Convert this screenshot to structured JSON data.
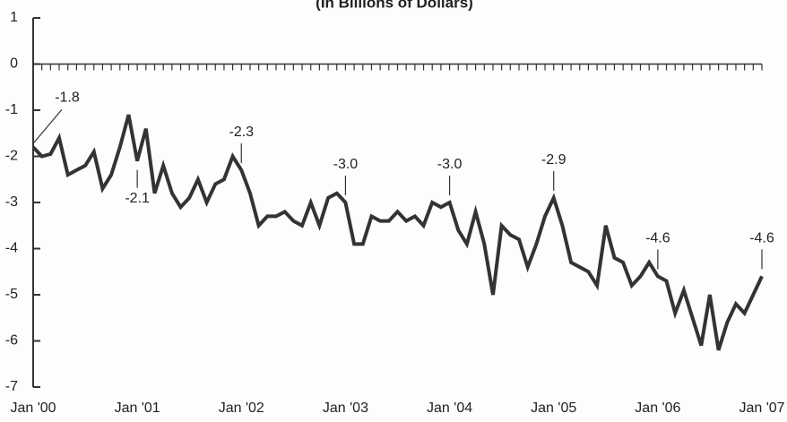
{
  "chart_data": {
    "type": "line",
    "title": "(In Billions of Dollars)",
    "categories": [
      "Jan '00",
      null,
      null,
      null,
      null,
      null,
      null,
      null,
      null,
      null,
      null,
      null,
      "Jan '01",
      null,
      null,
      null,
      null,
      null,
      null,
      null,
      null,
      null,
      null,
      null,
      "Jan '02",
      null,
      null,
      null,
      null,
      null,
      null,
      null,
      null,
      null,
      null,
      null,
      "Jan '03",
      null,
      null,
      null,
      null,
      null,
      null,
      null,
      null,
      null,
      null,
      null,
      "Jan '04",
      null,
      null,
      null,
      null,
      null,
      null,
      null,
      null,
      null,
      null,
      null,
      "Jan '05",
      null,
      null,
      null,
      null,
      null,
      null,
      null,
      null,
      null,
      null,
      null,
      "Jan '06",
      null,
      null,
      null,
      null,
      null,
      null,
      null,
      null,
      null,
      null,
      null,
      "Jan '07"
    ],
    "values": [
      -1.8,
      -2.0,
      -1.95,
      -1.6,
      -2.4,
      -2.3,
      -2.2,
      -1.9,
      -2.7,
      -2.4,
      -1.8,
      -1.1,
      -2.1,
      -1.4,
      -2.8,
      -2.2,
      -2.8,
      -3.1,
      -2.9,
      -2.5,
      -3.0,
      -2.6,
      -2.5,
      -2.0,
      -2.3,
      -2.8,
      -3.5,
      -3.3,
      -3.3,
      -3.2,
      -3.4,
      -3.5,
      -3.0,
      -3.5,
      -2.9,
      -2.8,
      -3.0,
      -3.9,
      -3.9,
      -3.3,
      -3.4,
      -3.4,
      -3.2,
      -3.4,
      -3.3,
      -3.5,
      -3.0,
      -3.1,
      -3.0,
      -3.6,
      -3.9,
      -3.2,
      -3.9,
      -5.0,
      -3.5,
      -3.7,
      -3.8,
      -4.4,
      -3.9,
      -3.3,
      -2.9,
      -3.5,
      -4.3,
      -4.4,
      -4.5,
      -4.8,
      -3.5,
      -4.2,
      -4.3,
      -4.8,
      -4.6,
      -4.3,
      -4.6,
      -4.7,
      -5.4,
      -4.9,
      -5.5,
      -6.1,
      -5.0,
      -6.2,
      -5.6,
      -5.2,
      -5.4,
      -5.0,
      -4.6
    ],
    "value_labels": [
      "-1.8",
      null,
      null,
      null,
      null,
      null,
      null,
      null,
      null,
      null,
      null,
      null,
      "-2.1",
      null,
      null,
      null,
      null,
      null,
      null,
      null,
      null,
      null,
      null,
      null,
      "-2.3",
      null,
      null,
      null,
      null,
      null,
      null,
      null,
      null,
      null,
      null,
      null,
      "-3.0",
      null,
      null,
      null,
      null,
      null,
      null,
      null,
      null,
      null,
      null,
      null,
      "-3.0",
      null,
      null,
      null,
      null,
      null,
      null,
      null,
      null,
      null,
      null,
      null,
      "-2.9",
      null,
      null,
      null,
      null,
      null,
      null,
      null,
      null,
      null,
      null,
      null,
      "-4.6",
      null,
      null,
      null,
      null,
      null,
      null,
      null,
      null,
      null,
      null,
      null,
      "-4.6"
    ],
    "color": "#333333",
    "ylim": [
      -7,
      1
    ],
    "yticks": [
      1,
      0,
      -1,
      -2,
      -3,
      -4,
      -5,
      -6,
      -7
    ]
  }
}
